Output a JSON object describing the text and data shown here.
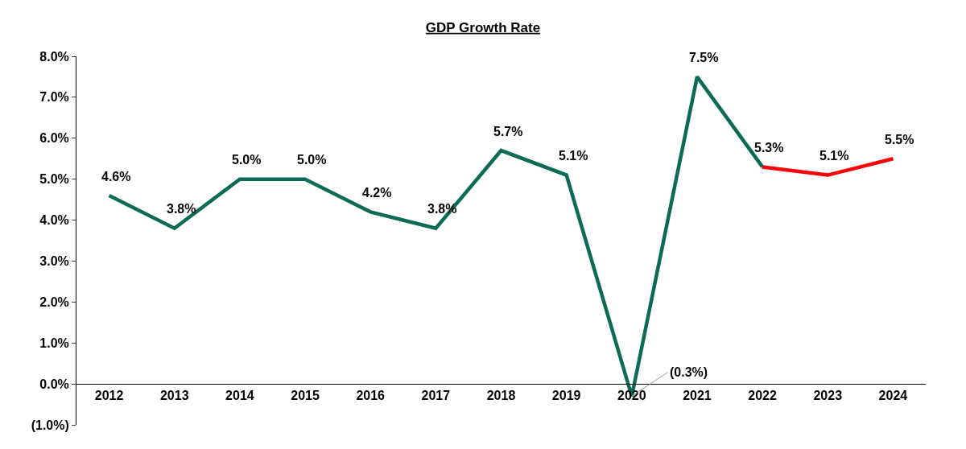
{
  "chart_data": {
    "type": "line",
    "title": "GDP Growth Rate",
    "categories": [
      "2012",
      "2013",
      "2014",
      "2015",
      "2016",
      "2017",
      "2018",
      "2019",
      "2020",
      "2021",
      "2022",
      "2023",
      "2024"
    ],
    "series": [
      {
        "color": "#0b6b55",
        "values": [
          4.6,
          3.8,
          5.0,
          5.0,
          4.2,
          3.8,
          5.7,
          5.1,
          -0.3,
          7.5,
          5.3,
          null,
          null
        ],
        "value_labels": [
          "4.6%",
          "3.8%",
          "5.0%",
          "5.0%",
          "4.2%",
          "3.8%",
          "5.7%",
          "5.1%",
          "(0.3%)",
          "7.5%",
          "5.3%",
          null,
          null
        ]
      },
      {
        "color": "#ff0000",
        "values": [
          null,
          null,
          null,
          null,
          null,
          null,
          null,
          null,
          null,
          null,
          5.3,
          5.1,
          5.5
        ],
        "value_labels": [
          null,
          null,
          null,
          null,
          null,
          null,
          null,
          null,
          null,
          null,
          null,
          "5.1%",
          "5.5%"
        ]
      }
    ],
    "ylim": [
      -1,
      8
    ],
    "yticks": [
      {
        "value": -1,
        "label": "(1.0%)"
      },
      {
        "value": 0,
        "label": "0.0%"
      },
      {
        "value": 1,
        "label": "1.0%"
      },
      {
        "value": 2,
        "label": "2.0%"
      },
      {
        "value": 3,
        "label": "3.0%"
      },
      {
        "value": 4,
        "label": "4.0%"
      },
      {
        "value": 5,
        "label": "5.0%"
      },
      {
        "value": 6,
        "label": "6.0%"
      },
      {
        "value": 7,
        "label": "7.0%"
      },
      {
        "value": 8,
        "label": "8.0%"
      }
    ],
    "marker": "none",
    "line_style": "solid"
  }
}
